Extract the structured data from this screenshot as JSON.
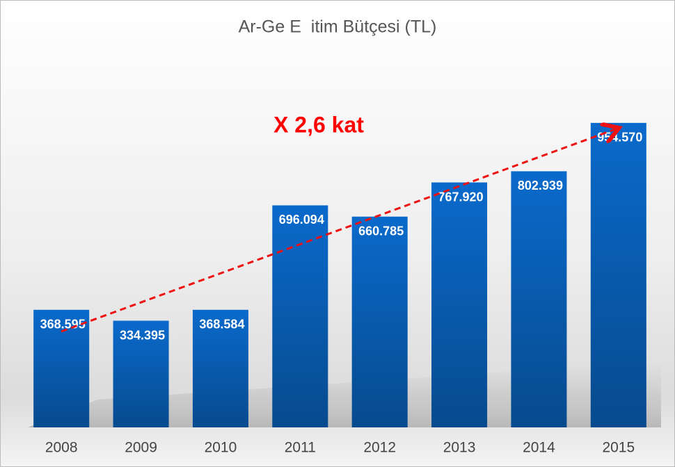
{
  "chart_data": {
    "type": "bar",
    "title": "Ar-Ge E  itim Bütçesi (TL)",
    "annotation": "X 2,6 kat",
    "categories": [
      "2008",
      "2009",
      "2010",
      "2011",
      "2012",
      "2013",
      "2014",
      "2015"
    ],
    "values": [
      368595,
      334395,
      368584,
      696094,
      660785,
      767920,
      802939,
      954570
    ],
    "value_labels": [
      "368.595",
      "334.395",
      "368.584",
      "696.094",
      "660.785",
      "767.920",
      "802.939",
      "954.570"
    ],
    "color": "#0a6acb",
    "ylim": [
      0,
      1000000
    ]
  }
}
